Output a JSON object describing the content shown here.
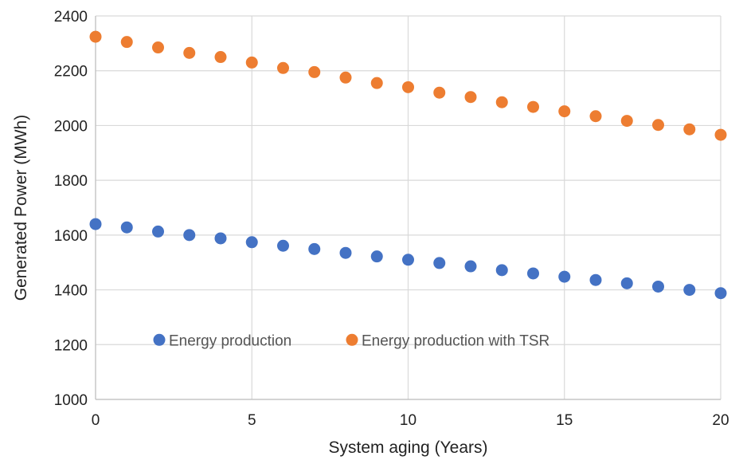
{
  "chart_data": {
    "type": "scatter",
    "title": "",
    "xlabel": "System aging (Years)",
    "ylabel": "Generated Power (MWh)",
    "xlim": [
      0,
      20
    ],
    "ylim": [
      1000,
      2400
    ],
    "x_ticks": [
      0,
      5,
      10,
      15,
      20
    ],
    "y_ticks": [
      1000,
      1200,
      1400,
      1600,
      1800,
      2000,
      2200,
      2400
    ],
    "grid": true,
    "legend_position": "inside-lower-center",
    "series": [
      {
        "name": "Energy production",
        "color": "#4472C4",
        "x": [
          0,
          1,
          2,
          3,
          4,
          5,
          6,
          7,
          8,
          9,
          10,
          11,
          12,
          13,
          14,
          15,
          16,
          17,
          18,
          19,
          20
        ],
        "y": [
          1640,
          1628,
          1613,
          1600,
          1588,
          1574,
          1561,
          1549,
          1535,
          1522,
          1510,
          1498,
          1486,
          1472,
          1460,
          1448,
          1436,
          1424,
          1412,
          1400,
          1388
        ]
      },
      {
        "name": "Energy production with TSR",
        "color": "#ED7D31",
        "x": [
          0,
          1,
          2,
          3,
          4,
          5,
          6,
          7,
          8,
          9,
          10,
          11,
          12,
          13,
          14,
          15,
          16,
          17,
          18,
          19,
          20
        ],
        "y": [
          2324,
          2305,
          2285,
          2265,
          2250,
          2230,
          2210,
          2195,
          2175,
          2155,
          2140,
          2120,
          2104,
          2085,
          2068,
          2052,
          2034,
          2017,
          2002,
          1986,
          1966
        ]
      }
    ]
  }
}
